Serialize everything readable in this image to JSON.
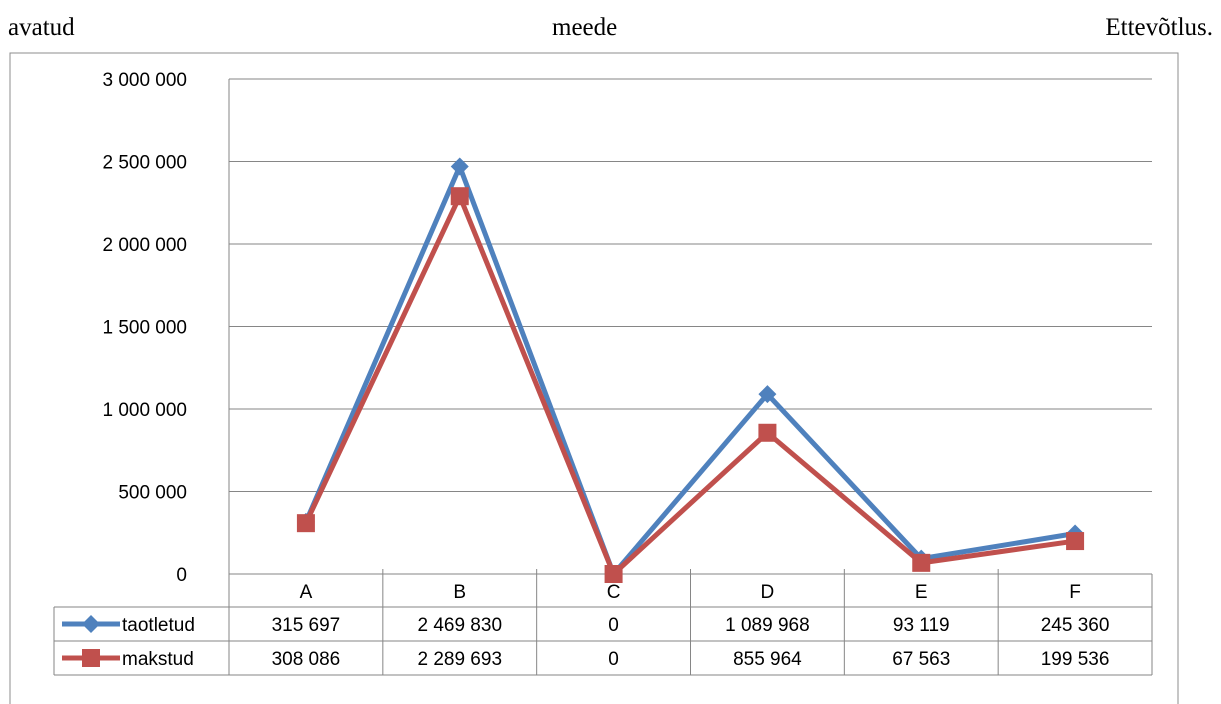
{
  "header": {
    "left": "avatud",
    "center": "meede",
    "right": "Ettevõtlus."
  },
  "chart_data": {
    "type": "line",
    "categories": [
      "A",
      "B",
      "C",
      "D",
      "E",
      "F"
    ],
    "ylim": [
      0,
      3000000
    ],
    "yticks": [
      0,
      500000,
      1000000,
      1500000,
      2000000,
      2500000,
      3000000
    ],
    "ytick_labels": [
      "0",
      "500 000",
      "1 000 000",
      "1 500 000",
      "2 000 000",
      "2 500 000",
      "3 000 000"
    ],
    "grid": true,
    "legend_placement": "data-table-left",
    "series": [
      {
        "name": "taotletud",
        "marker": "diamond",
        "color": "#4F81BD",
        "values": [
          315697,
          2469830,
          0,
          1089968,
          93119,
          245360
        ],
        "labels": [
          "315 697",
          "2 469 830",
          "0",
          "1 089 968",
          "93 119",
          "245 360"
        ]
      },
      {
        "name": "makstud",
        "marker": "square",
        "color": "#C0504D",
        "values": [
          308086,
          2289693,
          0,
          855964,
          67563,
          199536
        ],
        "labels": [
          "308 086",
          "2 289 693",
          "0",
          "855 964",
          "67 563",
          "199 536"
        ]
      }
    ]
  }
}
